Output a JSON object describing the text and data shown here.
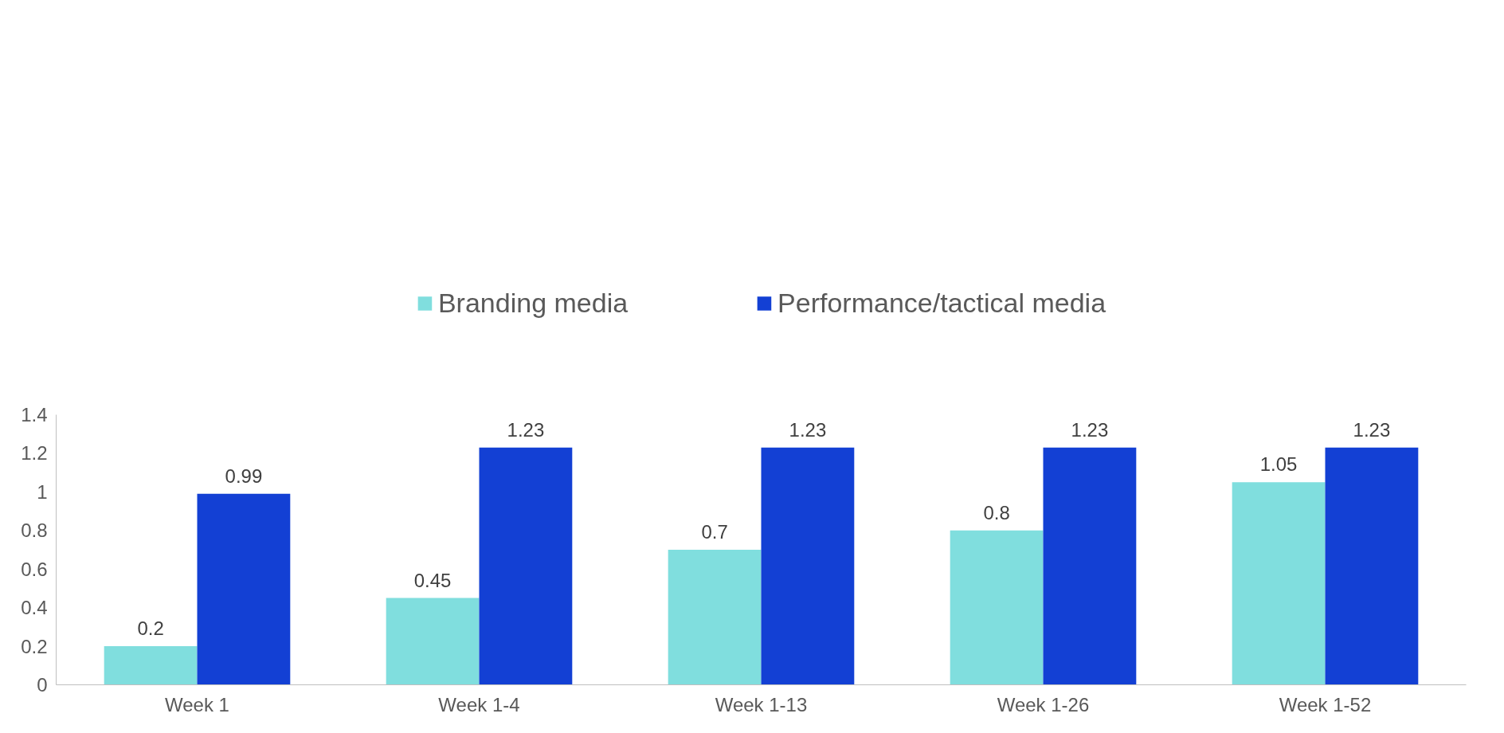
{
  "chart_data": {
    "type": "bar",
    "categories": [
      "Week 1",
      "Week 1-4",
      "Week 1-13",
      "Week 1-26",
      "Week 1-52"
    ],
    "series": [
      {
        "name": "Branding media",
        "color": "#80dede",
        "values": [
          0.2,
          0.45,
          0.7,
          0.8,
          1.05
        ]
      },
      {
        "name": "Performance/tactical media",
        "color": "#1340d4",
        "values": [
          0.99,
          1.23,
          1.23,
          1.23,
          1.23
        ]
      }
    ],
    "ylim": [
      0,
      1.4
    ],
    "yticks": [
      0,
      0.2,
      0.4,
      0.6,
      0.8,
      1,
      1.2,
      1.4
    ],
    "data_labels": true,
    "grid": false,
    "legend": "top"
  }
}
